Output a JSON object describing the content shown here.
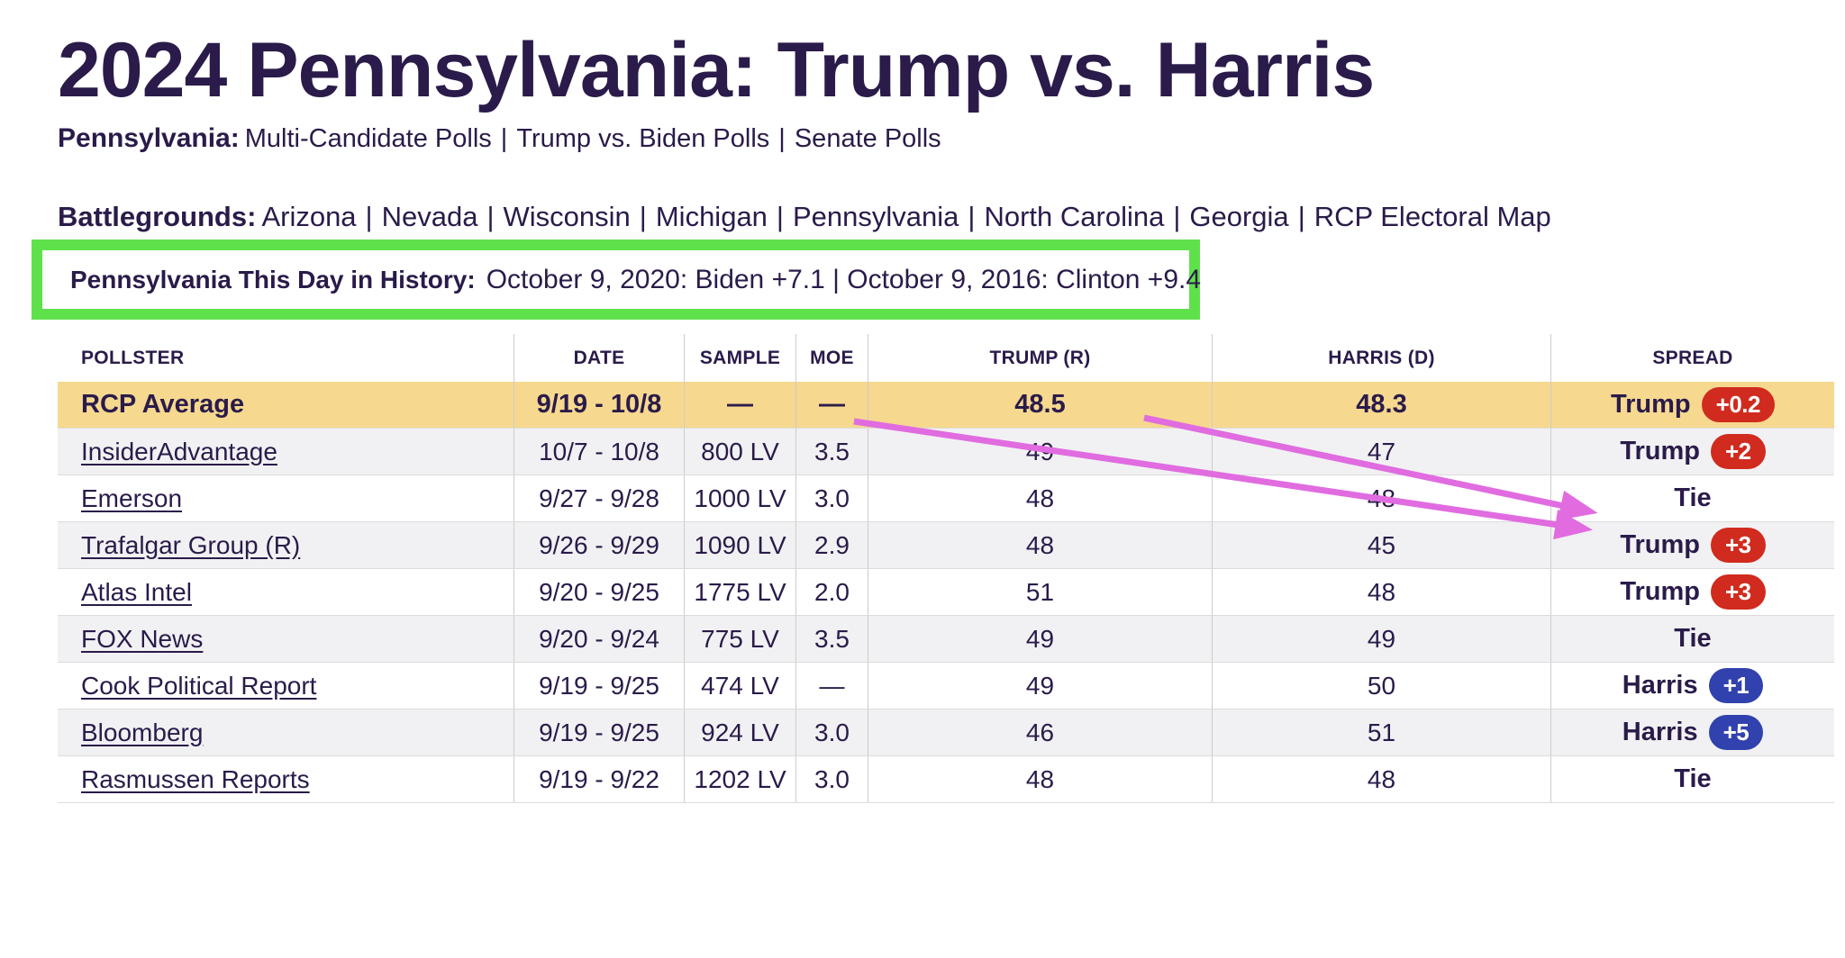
{
  "page": {
    "title": "2024 Pennsylvania: Trump vs. Harris"
  },
  "state_links": {
    "label": "Pennsylvania:",
    "items": [
      "Multi-Candidate Polls",
      "Trump vs. Biden Polls",
      "Senate Polls"
    ]
  },
  "battlegrounds": {
    "label": "Battlegrounds:",
    "items": [
      "Arizona",
      "Nevada",
      "Wisconsin",
      "Michigan",
      "Pennsylvania",
      "North Carolina",
      "Georgia",
      "RCP Electoral Map"
    ]
  },
  "history_callout": {
    "label": "Pennsylvania This Day in History:",
    "text": "October 9, 2020: Biden +7.1 | October 9, 2016: Clinton +9.4"
  },
  "poll_table": {
    "headers": [
      "POLLSTER",
      "DATE",
      "SAMPLE",
      "MOE",
      "TRUMP (R)",
      "HARRIS (D)",
      "SPREAD"
    ],
    "rows": [
      {
        "pollster": "RCP Average",
        "date": "9/19 - 10/8",
        "sample": "—",
        "moe": "—",
        "trump": "48.5",
        "harris": "48.3",
        "spread": {
          "winner": "Trump",
          "margin": "+0.2",
          "color": "red"
        },
        "is_average": true,
        "is_link": false
      },
      {
        "pollster": "InsiderAdvantage",
        "date": "10/7 - 10/8",
        "sample": "800 LV",
        "moe": "3.5",
        "trump": "49",
        "harris": "47",
        "spread": {
          "winner": "Trump",
          "margin": "+2",
          "color": "red"
        },
        "is_average": false,
        "is_link": true
      },
      {
        "pollster": "Emerson",
        "date": "9/27 - 9/28",
        "sample": "1000 LV",
        "moe": "3.0",
        "trump": "48",
        "harris": "48",
        "spread": {
          "winner": "Tie",
          "margin": null,
          "color": null
        },
        "is_average": false,
        "is_link": true
      },
      {
        "pollster": "Trafalgar Group (R)",
        "date": "9/26 - 9/29",
        "sample": "1090 LV",
        "moe": "2.9",
        "trump": "48",
        "harris": "45",
        "spread": {
          "winner": "Trump",
          "margin": "+3",
          "color": "red"
        },
        "is_average": false,
        "is_link": true
      },
      {
        "pollster": "Atlas Intel",
        "date": "9/20 - 9/25",
        "sample": "1775 LV",
        "moe": "2.0",
        "trump": "51",
        "harris": "48",
        "spread": {
          "winner": "Trump",
          "margin": "+3",
          "color": "red"
        },
        "is_average": false,
        "is_link": true
      },
      {
        "pollster": "FOX News",
        "date": "9/20 - 9/24",
        "sample": "775 LV",
        "moe": "3.5",
        "trump": "49",
        "harris": "49",
        "spread": {
          "winner": "Tie",
          "margin": null,
          "color": null
        },
        "is_average": false,
        "is_link": true
      },
      {
        "pollster": "Cook Political Report",
        "date": "9/19 - 9/25",
        "sample": "474 LV",
        "moe": "—",
        "trump": "49",
        "harris": "50",
        "spread": {
          "winner": "Harris",
          "margin": "+1",
          "color": "blue"
        },
        "is_average": false,
        "is_link": true
      },
      {
        "pollster": "Bloomberg",
        "date": "9/19 - 9/25",
        "sample": "924 LV",
        "moe": "3.0",
        "trump": "46",
        "harris": "51",
        "spread": {
          "winner": "Harris",
          "margin": "+5",
          "color": "blue"
        },
        "is_average": false,
        "is_link": true
      },
      {
        "pollster": "Rasmussen Reports",
        "date": "9/19 - 9/22",
        "sample": "1202 LV",
        "moe": "3.0",
        "trump": "48",
        "harris": "48",
        "spread": {
          "winner": "Tie",
          "margin": null,
          "color": null
        },
        "is_average": false,
        "is_link": true
      }
    ]
  },
  "annotations": {
    "separator": "|",
    "arrow_color": "#e06ce0",
    "callout_border_color": "#5fe14c"
  },
  "colors": {
    "heading_text": "#2a1b4a",
    "row_highlight": "#f6d88f",
    "row_stripe": "#f1f1f3",
    "badge_red": "#d02b1e",
    "badge_blue": "#3142ae"
  }
}
